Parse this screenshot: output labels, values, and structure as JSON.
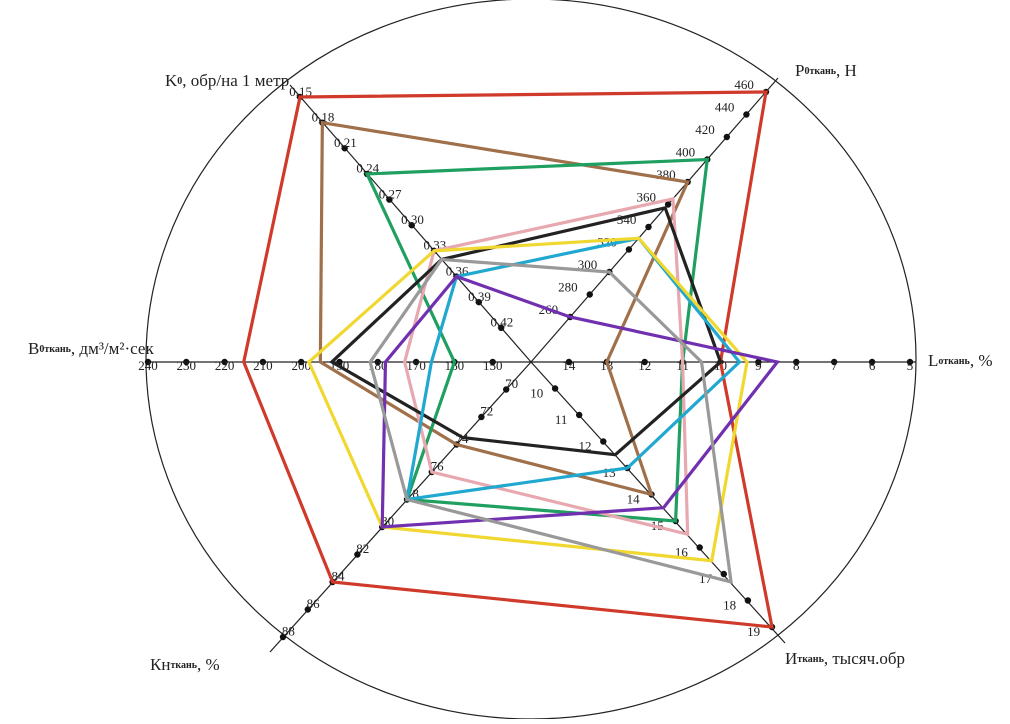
{
  "chart_data": {
    "type": "radar",
    "axes": [
      {
        "label": "K",
        "sub": "0",
        "unit": ", обр/на 1 метр",
        "lim": [
          0.46,
          0.15
        ],
        "ticks": [
          {
            "value": 0.15,
            "label": "0,15"
          },
          {
            "value": 0.18,
            "label": "0,18"
          },
          {
            "value": 0.21,
            "label": "0,21"
          },
          {
            "value": 0.24,
            "label": "0,24"
          },
          {
            "value": 0.27,
            "label": "0,27"
          },
          {
            "value": 0.3,
            "label": "0,30"
          },
          {
            "value": 0.33,
            "label": "0,33"
          },
          {
            "value": 0.36,
            "label": "0,36"
          },
          {
            "value": 0.39,
            "label": "0,39"
          },
          {
            "value": 0.42,
            "label": "0,42"
          }
        ]
      },
      {
        "label": "P",
        "sub": "0ткань",
        "unit": ", Н",
        "lim": [
          220,
          460
        ],
        "ticks": [
          260,
          280,
          300,
          320,
          340,
          360,
          380,
          400,
          420,
          440,
          460
        ]
      },
      {
        "label": "L",
        "sub": "откань",
        "unit": ", %",
        "lim": [
          15,
          5
        ],
        "ticks": [
          14,
          13,
          12,
          11,
          10,
          9,
          8,
          7,
          6,
          5
        ]
      },
      {
        "label": "И",
        "sub": "ткань",
        "unit": ", тысяч.обр",
        "lim": [
          9,
          19
        ],
        "ticks": [
          10,
          11,
          12,
          13,
          14,
          15,
          16,
          17,
          18,
          19
        ]
      },
      {
        "label": "Кн",
        "sub": "ткань",
        "unit": ", %",
        "lim": [
          68,
          88
        ],
        "ticks": [
          70,
          72,
          74,
          76,
          78,
          80,
          82,
          84,
          86,
          88
        ]
      },
      {
        "label": "B",
        "sub": "0ткань",
        "unit": ", дм³/м²·сек",
        "lim": [
          140,
          240
        ],
        "ticks": [
          150,
          160,
          170,
          180,
          190,
          200,
          210,
          220,
          230,
          240
        ]
      }
    ],
    "series": [
      {
        "color": "#d03a2a",
        "values": [
          0.15,
          460,
          10,
          19,
          84,
          215
        ]
      },
      {
        "color": "#a0704a",
        "values": [
          0.18,
          380,
          13,
          14,
          74,
          195
        ]
      },
      {
        "color": "#1fa060",
        "values": [
          0.24,
          400,
          11,
          15,
          78,
          160
        ]
      },
      {
        "color": "#e8a8b0",
        "values": [
          0.33,
          365,
          11,
          15.5,
          76,
          173
        ]
      },
      {
        "color": "#222222",
        "values": [
          0.34,
          357,
          10,
          12.5,
          73.5,
          192
        ]
      },
      {
        "color": "#20a8d0",
        "values": [
          0.36,
          330,
          9.5,
          13,
          78,
          166
        ]
      },
      {
        "color": "#f0d830",
        "values": [
          0.33,
          330,
          9.3,
          16.5,
          80,
          198
        ]
      },
      {
        "color": "#7030b0",
        "values": [
          0.36,
          260,
          8.5,
          14.5,
          80,
          178
        ]
      },
      {
        "color": "#999999",
        "values": [
          0.34,
          300,
          10.5,
          17.3,
          78,
          182
        ]
      }
    ]
  }
}
